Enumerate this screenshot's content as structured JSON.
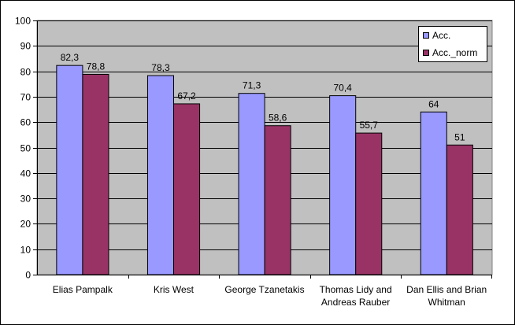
{
  "chart_data": {
    "type": "bar",
    "categories": [
      [
        "Elias Pampalk"
      ],
      [
        "Kris West"
      ],
      [
        "George Tzanetakis"
      ],
      [
        "Thomas Lidy and",
        "Andreas Rauber"
      ],
      [
        "Dan Ellis and Brian",
        "Whitman"
      ]
    ],
    "series": [
      {
        "name": "Acc.",
        "values": [
          82.3,
          78.3,
          71.3,
          70.4,
          64
        ],
        "labels": [
          "82,3",
          "78,3",
          "71,3",
          "70,4",
          "64"
        ],
        "color": "#9999ff"
      },
      {
        "name": "Acc._norm",
        "values": [
          78.8,
          67.2,
          58.6,
          55.7,
          51
        ],
        "labels": [
          "78,8",
          "67,2",
          "58,6",
          "55,7",
          "51"
        ],
        "color": "#993366"
      }
    ],
    "ylim": [
      0,
      100
    ],
    "yticks": [
      0,
      10,
      20,
      30,
      40,
      50,
      60,
      70,
      80,
      90,
      100
    ],
    "plot_background": "#c0c0c0",
    "grid": true,
    "legend": "top-right",
    "title": "",
    "xlabel": "",
    "ylabel": ""
  }
}
